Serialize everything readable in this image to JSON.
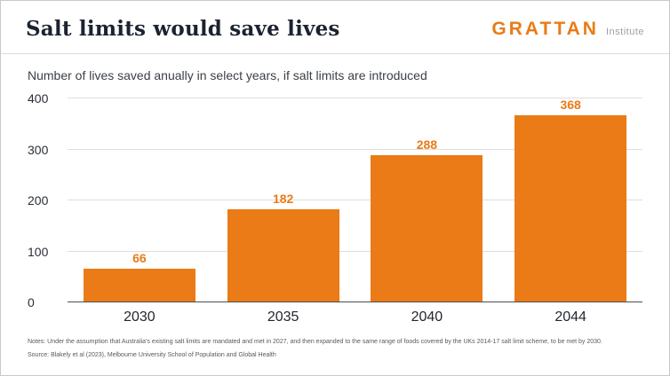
{
  "header": {
    "title": "Salt limits would save lives"
  },
  "logo": {
    "main": "GRATTAN",
    "sub": "Institute"
  },
  "subtitle": "Number of lives saved anually in select years, if salt limits are introduced",
  "chart_data": {
    "type": "bar",
    "title": "Salt limits would save lives",
    "subtitle": "Number of lives saved anually in select years, if salt limits are introduced",
    "categories": [
      "2030",
      "2035",
      "2040",
      "2044"
    ],
    "values": [
      66,
      182,
      288,
      368
    ],
    "xlabel": "",
    "ylabel": "",
    "ylim": [
      0,
      400
    ],
    "yticks": [
      0,
      100,
      200,
      300,
      400
    ],
    "grid": true,
    "legend": "none",
    "bar_color": "#EA7B16",
    "value_labels": true
  },
  "notes": {
    "line1": "Notes: Under the assumption that Australia's existing salt limits are mandated and met in 2027, and then expanded to the same range of foods covered by the UKs 2014-17 salt limit scheme, to be met by 2030.",
    "line2": "Source: Blakely et al (2023), Melbourne University School of  Population and Global Health"
  },
  "colors": {
    "accent": "#EA7B16",
    "title_text": "#1b2230",
    "grid": "#dedede",
    "baseline": "#4a4e54"
  }
}
